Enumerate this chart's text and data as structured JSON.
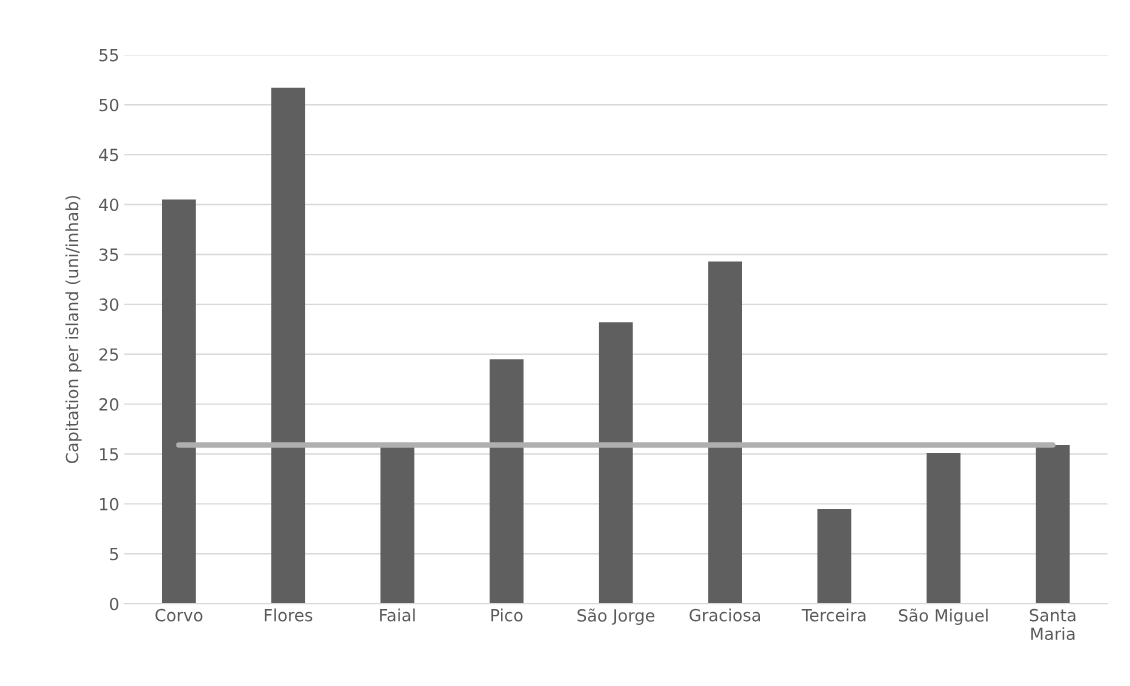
{
  "chart_data": {
    "type": "bar",
    "ylabel": "Capitation per island (uni/inhab)",
    "categories": [
      "Corvo",
      "Flores",
      "Faial",
      "Pico",
      "São Jorge",
      "Graciosa",
      "Terceira",
      "São Miguel",
      "Santa\nMaria"
    ],
    "series": [
      {
        "color": "#5f5f5f",
        "values": [
          40.5,
          51.7,
          15.7,
          24.5,
          28.2,
          34.3,
          9.5,
          15.1,
          15.9
        ]
      },
      {
        "type": "line",
        "color": "#afafaf",
        "values": [
          15.9,
          15.9,
          15.9,
          15.9,
          15.9,
          15.9,
          15.9,
          15.9,
          15.9
        ]
      }
    ],
    "ylim": [
      0,
      55
    ],
    "yticks": [
      0,
      5,
      10,
      15,
      20,
      25,
      30,
      35,
      40,
      45,
      50,
      55
    ],
    "grid": "y"
  }
}
